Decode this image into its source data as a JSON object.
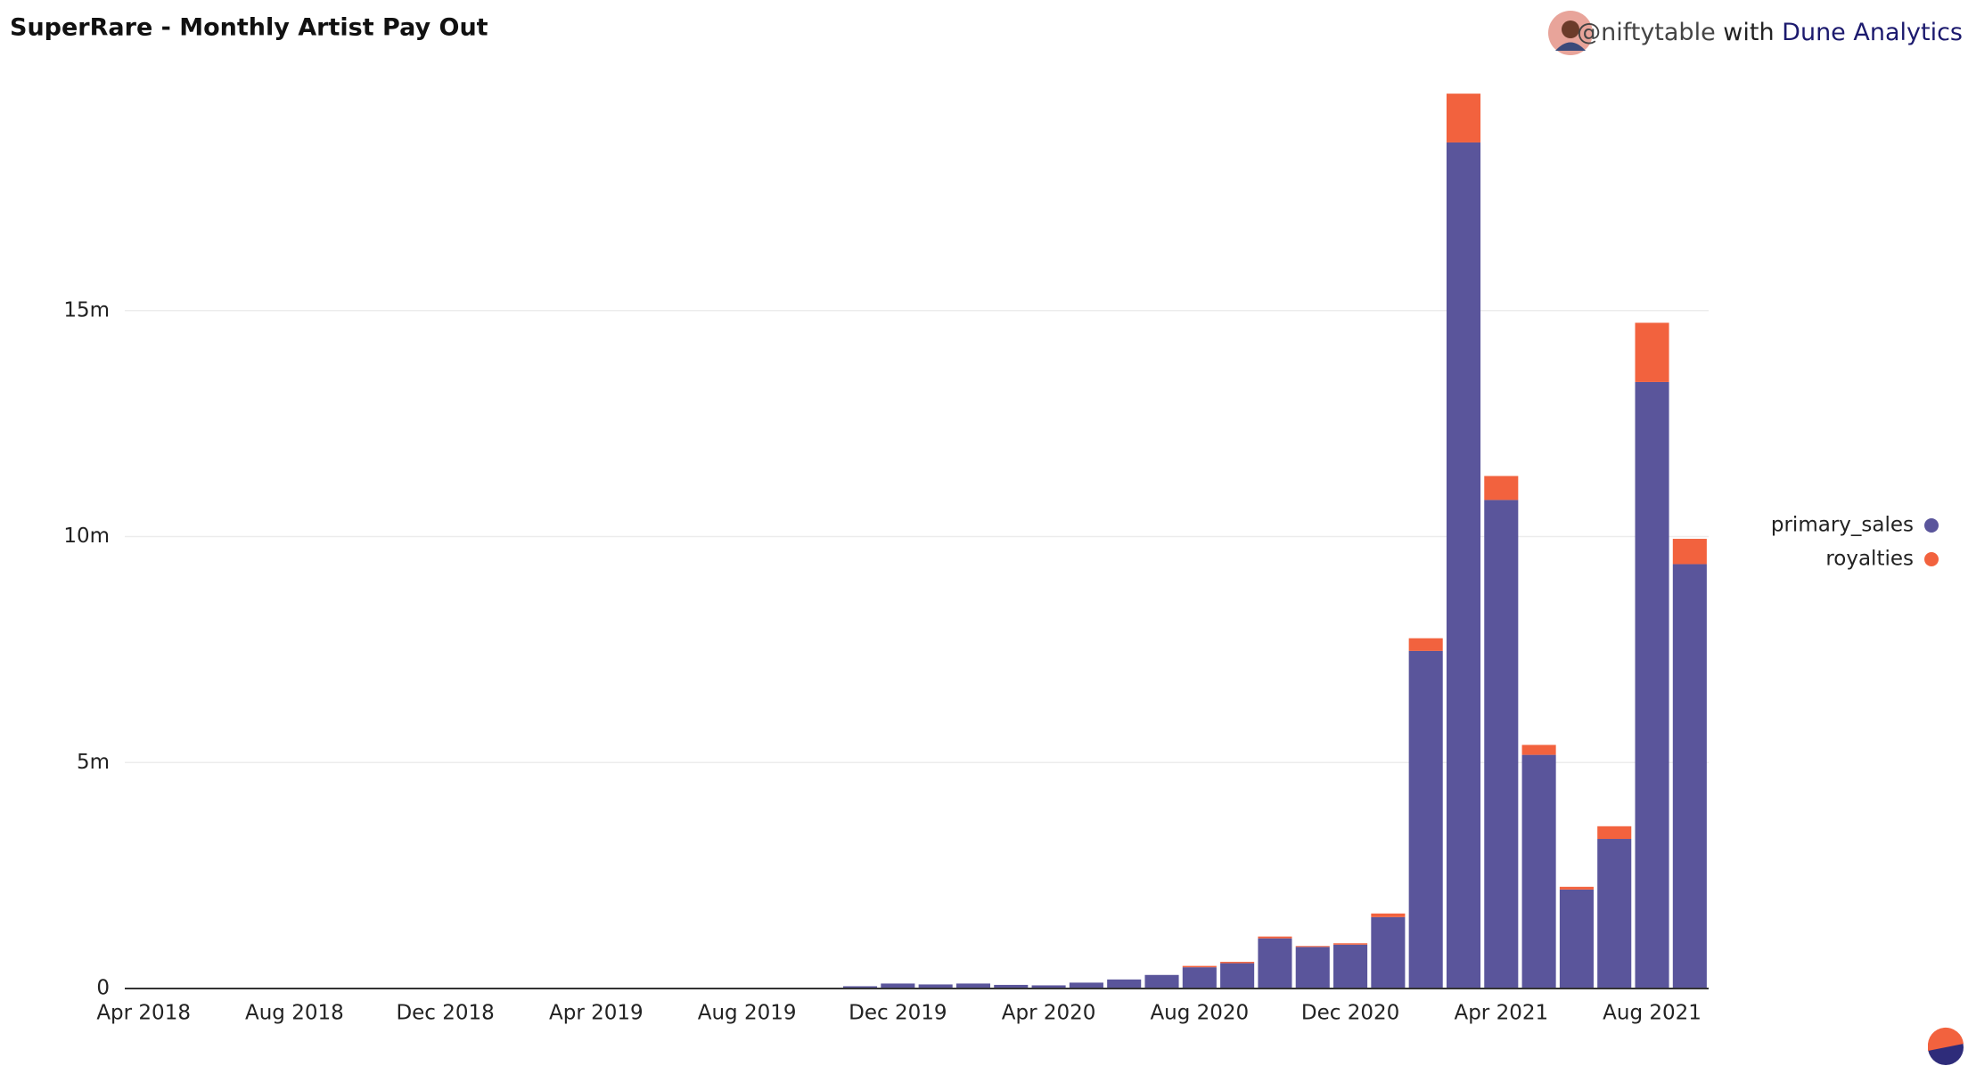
{
  "chart_data": {
    "type": "stacked_bar",
    "title": "SuperRare - Monthly Artist Pay Out",
    "credit": {
      "user": "@niftytable",
      "joiner": "with",
      "source": "Dune Analytics"
    },
    "categories": [
      "Apr 2018",
      null,
      null,
      null,
      "Aug 2018",
      null,
      null,
      null,
      "Dec 2018",
      null,
      null,
      null,
      "Apr 2019",
      null,
      null,
      null,
      "Aug 2019",
      null,
      null,
      null,
      "Dec 2019",
      null,
      null,
      null,
      "Apr 2020",
      null,
      null,
      null,
      "Aug 2020",
      null,
      null,
      null,
      "Dec 2020",
      null,
      null,
      null,
      "Apr 2021",
      null,
      null,
      null,
      "Aug 2021",
      null
    ],
    "series": [
      {
        "name": "primary_sales",
        "color": "#5a559b",
        "values": [
          0.01,
          0.01,
          0.01,
          0.01,
          0.01,
          0.01,
          0.01,
          0.01,
          0.01,
          0.01,
          0.01,
          0.01,
          0.01,
          0.01,
          0.01,
          0.01,
          0.01,
          0.01,
          0.01,
          0.05,
          0.11,
          0.09,
          0.11,
          0.08,
          0.07,
          0.13,
          0.2,
          0.3,
          0.47,
          0.56,
          1.11,
          0.92,
          0.97,
          1.58,
          7.47,
          18.72,
          10.81,
          5.17,
          2.19,
          3.31,
          13.42,
          9.39
        ]
      },
      {
        "name": "royalties",
        "color": "#f2623e",
        "values": [
          0,
          0,
          0,
          0,
          0,
          0,
          0,
          0,
          0,
          0,
          0,
          0,
          0,
          0,
          0,
          0,
          0,
          0,
          0,
          0,
          0,
          0,
          0,
          0,
          0,
          0,
          0,
          0,
          0.03,
          0.03,
          0.04,
          0.02,
          0.03,
          0.08,
          0.28,
          1.08,
          0.53,
          0.22,
          0.06,
          0.28,
          1.31,
          0.56
        ]
      }
    ],
    "ylim": [
      0,
      20
    ],
    "yticks": [
      0,
      {
        "value": 5,
        "label": "5m"
      },
      {
        "value": 10,
        "label": "10m"
      },
      {
        "value": 15,
        "label": "15m"
      }
    ],
    "grid": true,
    "legend": "right"
  }
}
